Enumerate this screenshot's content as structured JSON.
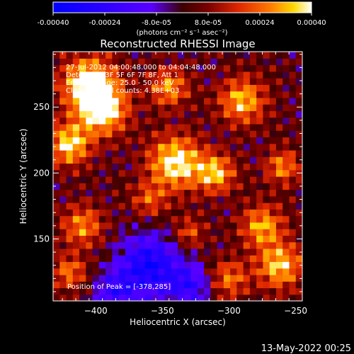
{
  "colorbar": {
    "ticks": [
      "-0.00040",
      "-0.00024",
      "-8.0e-05",
      "8.0e-05",
      "0.00024",
      "0.00040"
    ],
    "tick_values": [
      -0.0004,
      -0.00024,
      -8e-05,
      8e-05,
      0.00024,
      0.0004
    ],
    "range": [
      -0.0004,
      0.0004
    ],
    "units_label": "(photons cm⁻² s⁻¹ asec⁻²)"
  },
  "chart_data": {
    "type": "heatmap",
    "title": "Reconstructed RHESSI Image",
    "xlabel": "Heliocentric X (arcsec)",
    "ylabel": "Heliocentric Y (arcsec)",
    "xlim": [
      -432,
      -245
    ],
    "ylim": [
      103,
      292
    ],
    "xticks": [
      -400,
      -350,
      -300,
      -250
    ],
    "yticks": [
      150,
      200,
      250
    ],
    "annotations": [
      "27-Jul-2012 04:00:48.000 to 04:04:48.000",
      "Detectors: 3F 5F 6F 7F 8F, Att 1",
      "Energy Range: 25.0 - 50.0 keV",
      "Clean     Total counts: 4.38E+03"
    ],
    "peak_label": "Position of Peak = [-378,285]",
    "peak": [
      -378,
      285
    ],
    "grid_shape": [
      38,
      38
    ],
    "bright_sources": [
      {
        "x": -405,
        "y": 268,
        "strength": 1.0,
        "sigma": 14
      },
      {
        "x": -395,
        "y": 248,
        "strength": 0.95,
        "sigma": 13
      },
      {
        "x": -420,
        "y": 222,
        "strength": 0.85,
        "sigma": 11
      },
      {
        "x": -340,
        "y": 208,
        "strength": 0.95,
        "sigma": 14
      },
      {
        "x": -310,
        "y": 200,
        "strength": 0.75,
        "sigma": 10
      },
      {
        "x": -290,
        "y": 255,
        "strength": 0.75,
        "sigma": 12
      },
      {
        "x": -345,
        "y": 265,
        "strength": 0.65,
        "sigma": 10
      },
      {
        "x": -260,
        "y": 205,
        "strength": 0.6,
        "sigma": 9
      },
      {
        "x": -275,
        "y": 160,
        "strength": 0.7,
        "sigma": 11
      },
      {
        "x": -262,
        "y": 130,
        "strength": 0.8,
        "sigma": 12
      },
      {
        "x": -300,
        "y": 120,
        "strength": 0.55,
        "sigma": 10
      },
      {
        "x": -410,
        "y": 160,
        "strength": 0.6,
        "sigma": 11
      },
      {
        "x": -420,
        "y": 125,
        "strength": 0.55,
        "sigma": 9
      },
      {
        "x": -360,
        "y": 180,
        "strength": 0.45,
        "sigma": 9
      },
      {
        "x": -330,
        "y": 155,
        "strength": 0.45,
        "sigma": 8
      }
    ],
    "dark_sources": [
      {
        "x": -360,
        "y": 130,
        "strength": -0.9,
        "sigma": 16
      },
      {
        "x": -330,
        "y": 115,
        "strength": -0.6,
        "sigma": 11
      },
      {
        "x": -385,
        "y": 110,
        "strength": -0.55,
        "sigma": 11
      }
    ]
  },
  "timestamp": "13-May-2022 00:25"
}
